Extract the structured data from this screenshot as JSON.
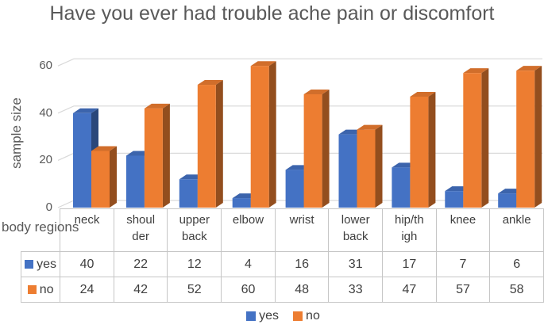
{
  "chart_data": {
    "type": "bar",
    "subtype": "3d-clustered-column",
    "title": "Have you ever had trouble ache pain or discomfort",
    "xlabel": "body regions",
    "ylabel": "sample size",
    "categories": [
      "neck",
      "shoulder",
      "upper back",
      "elbow",
      "wrist",
      "lower back",
      "hip/thigh",
      "knee",
      "ankle"
    ],
    "category_display_lines": [
      [
        "neck"
      ],
      [
        "shoul",
        "der"
      ],
      [
        "upper",
        "back"
      ],
      [
        "elbow"
      ],
      [
        "wrist"
      ],
      [
        "lower",
        "back"
      ],
      [
        "hip/th",
        "igh"
      ],
      [
        "knee"
      ],
      [
        "ankle"
      ]
    ],
    "series": [
      {
        "name": "yes",
        "color": "#4472C4",
        "values": [
          40,
          22,
          12,
          4,
          16,
          31,
          17,
          7,
          6
        ]
      },
      {
        "name": "no",
        "color": "#ED7D31",
        "values": [
          24,
          42,
          52,
          60,
          48,
          33,
          47,
          57,
          58
        ]
      }
    ],
    "yticks": [
      0,
      20,
      40,
      60
    ],
    "ylim": [
      0,
      60
    ],
    "grid": true,
    "legend_position": "bottom",
    "data_table_shown": true
  },
  "colors": {
    "series_yes": "#4472C4",
    "series_no": "#ED7D31",
    "gridline": "#D9D9D9",
    "table_border": "#C6C6C6",
    "text_table": "#3F3F3F",
    "text_axis": "#595959"
  }
}
